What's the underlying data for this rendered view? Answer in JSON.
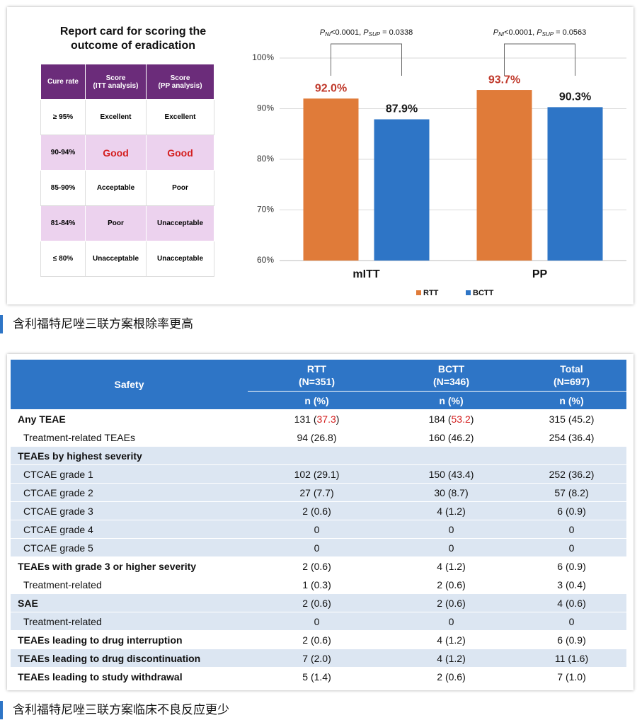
{
  "chart_data": {
    "type": "bar",
    "annotations": [
      {
        "parts": [
          "P",
          "NI",
          "<0.0001, ",
          "P",
          "SUP",
          " = 0.0338"
        ]
      },
      {
        "parts": [
          "P",
          "NI",
          "<0.0001, ",
          "P",
          "SUP",
          " = 0.0563"
        ]
      }
    ],
    "categories": [
      "mITT",
      "PP"
    ],
    "series": [
      {
        "name": "RTT",
        "color": "#e07b39",
        "label_color": "#c0392b",
        "values": [
          92.0,
          93.7
        ],
        "value_labels": [
          "92.0%",
          "93.7%"
        ]
      },
      {
        "name": "BCTT",
        "color": "#2e75c6",
        "label_color": "#1a1a1a",
        "values": [
          87.9,
          90.3
        ],
        "value_labels": [
          "87.9%",
          "90.3%"
        ]
      }
    ],
    "ylim": [
      60,
      100
    ],
    "yticks": [
      {
        "value": 60,
        "label": "60%"
      },
      {
        "value": 70,
        "label": "70%"
      },
      {
        "value": 80,
        "label": "80%"
      },
      {
        "value": 90,
        "label": "90%"
      },
      {
        "value": 100,
        "label": "100%"
      }
    ],
    "grid": true,
    "legend": "bottom"
  },
  "report_card": {
    "title": "Report card for scoring the outcome of eradication",
    "header": [
      [
        "Cure rate"
      ],
      [
        "Score",
        "(ITT analysis)"
      ],
      [
        "Score",
        "(PP analysis)"
      ]
    ],
    "rows": [
      [
        "≥ 95%",
        "Excellent",
        "Excellent"
      ],
      [
        "90-94%",
        "Good",
        "Good"
      ],
      [
        "85-90%",
        "Acceptable",
        "Poor"
      ],
      [
        "81-84%",
        "Poor",
        "Unacceptable"
      ],
      [
        "≤ 80%",
        "Unacceptable",
        "Unacceptable"
      ]
    ]
  },
  "caption1": "含利福特尼唑三联方案根除率更高",
  "safety_table": {
    "label": "Safety",
    "columns": [
      {
        "name": "RTT",
        "n": "(N=351)",
        "unit": "n (%)"
      },
      {
        "name": "BCTT",
        "n": "(N=346)",
        "unit": "n (%)"
      },
      {
        "name": "Total",
        "n": "(N=697)",
        "unit": "n (%)"
      }
    ],
    "rows": [
      {
        "label": "Any TEAE",
        "bold": true,
        "shaded": false,
        "cells": [
          [
            "131 (",
            "37.3",
            ")"
          ],
          [
            "184 (",
            "53.2",
            ")"
          ],
          "315 (45.2)"
        ]
      },
      {
        "label": "Treatment-related TEAEs",
        "bold": false,
        "shaded": false,
        "cells": [
          "94 (26.8)",
          "160 (46.2)",
          "254 (36.4)"
        ]
      },
      {
        "label": "TEAEs by highest severity",
        "bold": true,
        "shaded": true,
        "cells": [
          "",
          "",
          ""
        ]
      },
      {
        "label": "CTCAE grade 1",
        "bold": false,
        "shaded": true,
        "cells": [
          "102 (29.1)",
          "150 (43.4)",
          "252 (36.2)"
        ]
      },
      {
        "label": "CTCAE grade 2",
        "bold": false,
        "shaded": true,
        "cells": [
          "27 (7.7)",
          "30 (8.7)",
          "57 (8.2)"
        ]
      },
      {
        "label": "CTCAE grade 3",
        "bold": false,
        "shaded": true,
        "cells": [
          "2 (0.6)",
          "4 (1.2)",
          "6 (0.9)"
        ]
      },
      {
        "label": "CTCAE grade 4",
        "bold": false,
        "shaded": true,
        "cells": [
          "0",
          "0",
          "0"
        ]
      },
      {
        "label": "CTCAE grade 5",
        "bold": false,
        "shaded": true,
        "cells": [
          "0",
          "0",
          "0"
        ]
      },
      {
        "label": "TEAEs with grade 3 or higher severity",
        "bold": true,
        "shaded": false,
        "cells": [
          "2 (0.6)",
          "4 (1.2)",
          "6 (0.9)"
        ]
      },
      {
        "label": "Treatment-related",
        "bold": false,
        "shaded": false,
        "cells": [
          "1 (0.3)",
          "2 (0.6)",
          "3 (0.4)"
        ]
      },
      {
        "label": "SAE",
        "bold": true,
        "shaded": true,
        "cells": [
          "2 (0.6)",
          "2 (0.6)",
          "4 (0.6)"
        ]
      },
      {
        "label": "Treatment-related",
        "bold": false,
        "shaded": true,
        "cells": [
          "0",
          "0",
          "0"
        ]
      },
      {
        "label": "TEAEs leading to drug interruption",
        "bold": true,
        "shaded": false,
        "cells": [
          "2 (0.6)",
          "4 (1.2)",
          "6 (0.9)"
        ]
      },
      {
        "label": "TEAEs leading to drug discontinuation",
        "bold": true,
        "shaded": true,
        "cells": [
          "7 (2.0)",
          "4 (1.2)",
          "11 (1.6)"
        ]
      },
      {
        "label": "TEAEs leading to study withdrawal",
        "bold": true,
        "shaded": false,
        "cells": [
          "5 (1.4)",
          "2 (0.6)",
          "7 (1.0)"
        ]
      }
    ]
  },
  "caption2": "含利福特尼唑三联方案临床不良反应更少"
}
